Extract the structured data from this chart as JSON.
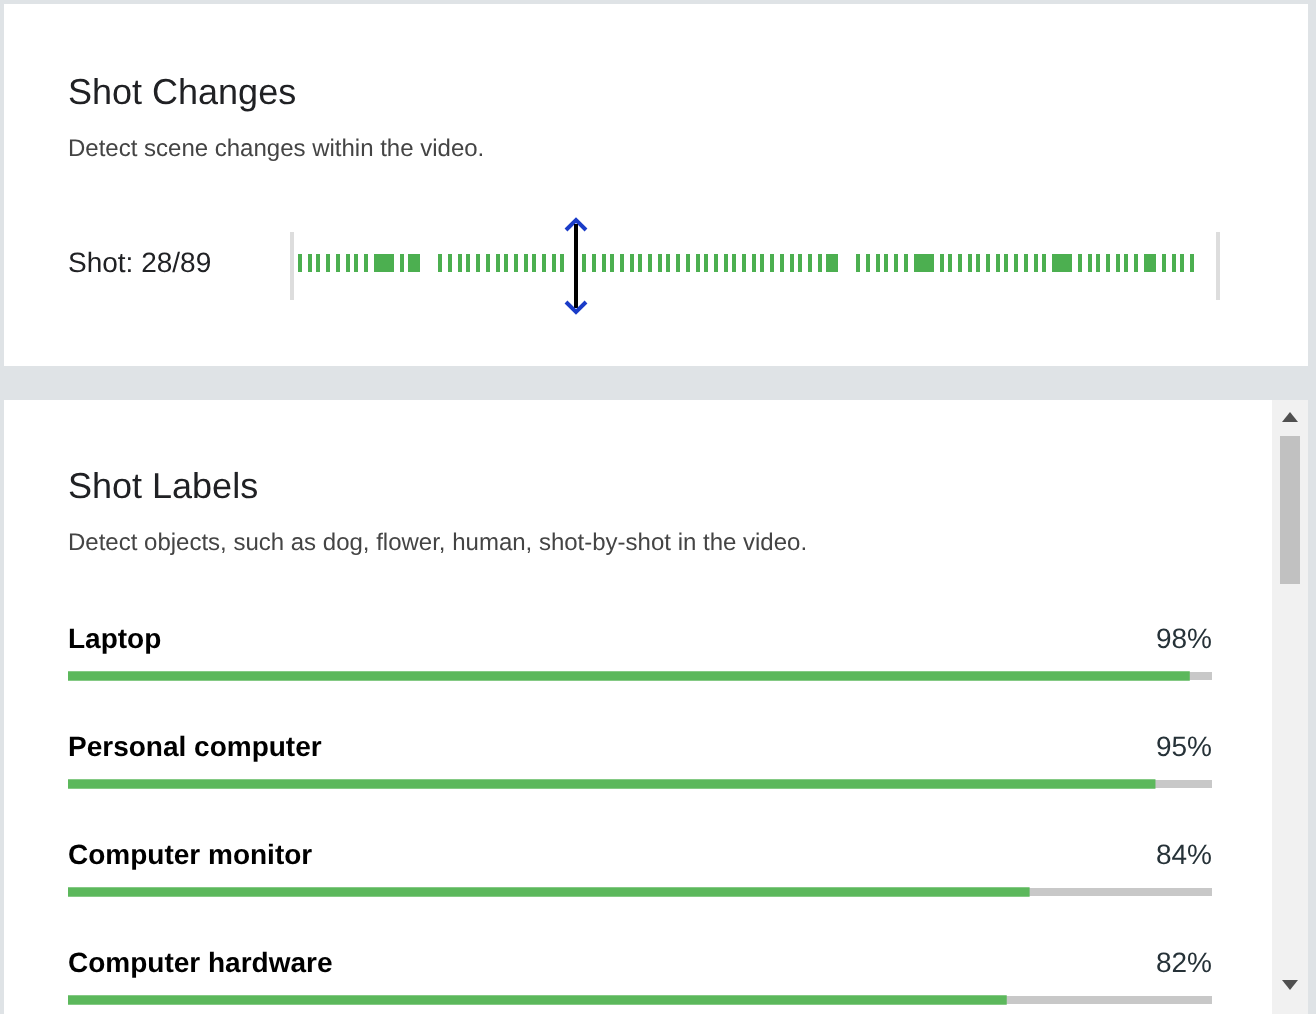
{
  "chart_data": [
    {
      "type": "other",
      "title": "Shot Changes",
      "subtitle": "Detect scene changes within the video.",
      "annotations": [
        "Shot: 28/89"
      ]
    },
    {
      "type": "bar",
      "orientation": "horizontal",
      "title": "Shot Labels",
      "subtitle": "Detect objects, such as dog, flower, human, shot-by-shot in the video.",
      "categories": [
        "Laptop",
        "Personal computer",
        "Computer monitor",
        "Computer hardware"
      ],
      "values": [
        98,
        95,
        84,
        82
      ],
      "value_labels": [
        "98%",
        "95%",
        "84%",
        "82%"
      ],
      "color": "#5cb85c",
      "xlim": [
        0,
        100
      ],
      "tick_labels": "y"
    }
  ]
}
